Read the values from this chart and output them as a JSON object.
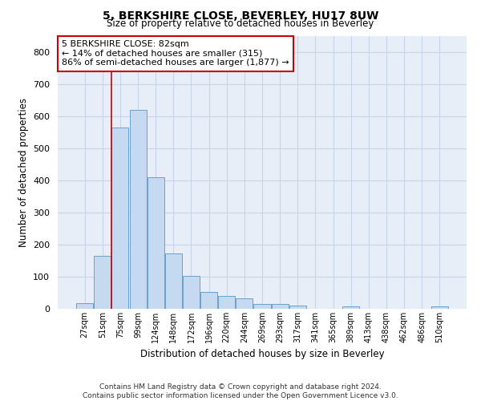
{
  "title": "5, BERKSHIRE CLOSE, BEVERLEY, HU17 8UW",
  "subtitle": "Size of property relative to detached houses in Beverley",
  "xlabel": "Distribution of detached houses by size in Beverley",
  "ylabel": "Number of detached properties",
  "footer_line1": "Contains HM Land Registry data © Crown copyright and database right 2024.",
  "footer_line2": "Contains public sector information licensed under the Open Government Licence v3.0.",
  "bar_labels": [
    "27sqm",
    "51sqm",
    "75sqm",
    "99sqm",
    "124sqm",
    "148sqm",
    "172sqm",
    "196sqm",
    "220sqm",
    "244sqm",
    "269sqm",
    "293sqm",
    "317sqm",
    "341sqm",
    "365sqm",
    "389sqm",
    "413sqm",
    "438sqm",
    "462sqm",
    "486sqm",
    "510sqm"
  ],
  "bar_values": [
    18,
    165,
    565,
    620,
    410,
    172,
    103,
    52,
    40,
    32,
    15,
    14,
    10,
    0,
    0,
    8,
    0,
    0,
    0,
    0,
    7
  ],
  "bar_color": "#c5d9f0",
  "bar_edge_color": "#6aa0cc",
  "annotation_text": "5 BERKSHIRE CLOSE: 82sqm\n← 14% of detached houses are smaller (315)\n86% of semi-detached houses are larger (1,877) →",
  "annotation_box_color": "#ffffff",
  "annotation_box_edge_color": "#cc0000",
  "vline_x": 2.0,
  "vline_color": "#cc0000",
  "grid_color": "#c8d4e8",
  "background_color": "#e8eef8",
  "ylim": [
    0,
    850
  ],
  "yticks": [
    0,
    100,
    200,
    300,
    400,
    500,
    600,
    700,
    800
  ]
}
